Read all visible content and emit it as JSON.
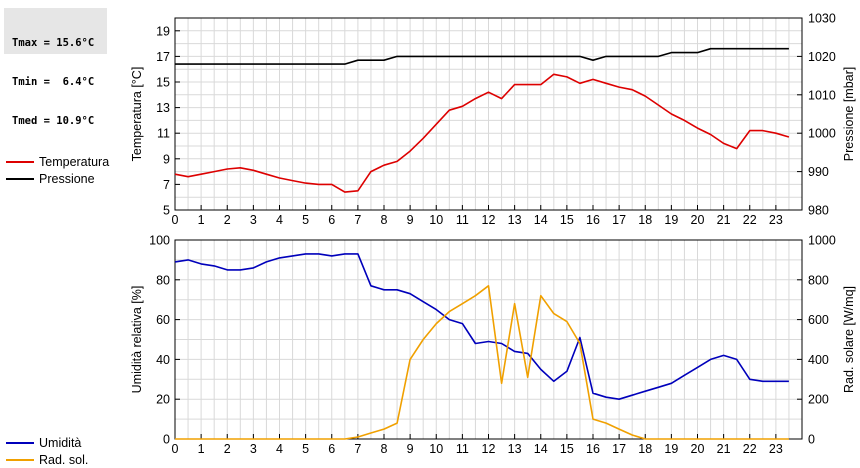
{
  "stats": {
    "lines": [
      "Tmax = 15.6°C",
      "Tmin =  6.4°C",
      "Tmed = 10.9°C"
    ]
  },
  "colors": {
    "temperature": "#dd0000",
    "pressure": "#000000",
    "humidity": "#0000bb",
    "solar": "#f0a000",
    "grid": "#d9d9d9"
  },
  "chart_data": [
    {
      "type": "line",
      "legend_placement": "left",
      "grid": true,
      "x": [
        0,
        0.5,
        1,
        1.5,
        2,
        2.5,
        3,
        3.5,
        4,
        4.5,
        5,
        5.5,
        6,
        6.5,
        7,
        7.5,
        8,
        8.5,
        9,
        9.5,
        10,
        10.5,
        11,
        11.5,
        12,
        12.5,
        13,
        13.5,
        14,
        14.5,
        15,
        15.5,
        16,
        16.5,
        17,
        17.5,
        18,
        18.5,
        19,
        19.5,
        20,
        20.5,
        21,
        21.5,
        22,
        22.5,
        23,
        23.5
      ],
      "xlim": [
        0,
        24
      ],
      "x_ticks": [
        0,
        1,
        2,
        3,
        4,
        5,
        6,
        7,
        8,
        9,
        10,
        11,
        12,
        13,
        14,
        15,
        16,
        17,
        18,
        19,
        20,
        21,
        22,
        23
      ],
      "ylabel": "Temperatura [°C]",
      "ylim": [
        5,
        20
      ],
      "y_ticks": [
        5,
        7,
        9,
        11,
        13,
        15,
        17,
        19
      ],
      "y2label": "Pressione [mbar]",
      "y2lim": [
        980,
        1030
      ],
      "y2_ticks": [
        980,
        990,
        1000,
        1010,
        1020,
        1030
      ],
      "series": [
        {
          "name": "Temperatura",
          "axis": "left",
          "values": [
            7.8,
            7.6,
            7.8,
            8.0,
            8.2,
            8.3,
            8.1,
            7.8,
            7.5,
            7.3,
            7.1,
            7.0,
            7.0,
            6.4,
            6.5,
            8.0,
            8.5,
            8.8,
            9.6,
            10.6,
            11.7,
            12.8,
            13.1,
            13.7,
            14.2,
            13.7,
            14.8,
            14.8,
            14.8,
            15.6,
            15.4,
            14.9,
            15.2,
            14.9,
            14.6,
            14.4,
            13.9,
            13.2,
            12.5,
            12.0,
            11.4,
            10.9,
            10.2,
            9.8,
            11.2,
            11.2,
            11.0,
            10.7
          ]
        },
        {
          "name": "Pressione",
          "axis": "right",
          "values": [
            1018,
            1018,
            1018,
            1018,
            1018,
            1018,
            1018,
            1018,
            1018,
            1018,
            1018,
            1018,
            1018,
            1018,
            1019,
            1019,
            1019,
            1020,
            1020,
            1020,
            1020,
            1020,
            1020,
            1020,
            1020,
            1020,
            1020,
            1020,
            1020,
            1020,
            1020,
            1020,
            1019,
            1020,
            1020,
            1020,
            1020,
            1020,
            1021,
            1021,
            1021,
            1022,
            1022,
            1022,
            1022,
            1022,
            1022,
            1022
          ]
        }
      ]
    },
    {
      "type": "line",
      "legend_placement": "left",
      "grid": true,
      "x": [
        0,
        0.5,
        1,
        1.5,
        2,
        2.5,
        3,
        3.5,
        4,
        4.5,
        5,
        5.5,
        6,
        6.5,
        7,
        7.5,
        8,
        8.5,
        9,
        9.5,
        10,
        10.5,
        11,
        11.5,
        12,
        12.5,
        13,
        13.5,
        14,
        14.5,
        15,
        15.5,
        16,
        16.5,
        17,
        17.5,
        18,
        18.5,
        19,
        19.5,
        20,
        20.5,
        21,
        21.5,
        22,
        22.5,
        23,
        23.5
      ],
      "xlim": [
        0,
        24
      ],
      "x_ticks": [
        0,
        1,
        2,
        3,
        4,
        5,
        6,
        7,
        8,
        9,
        10,
        11,
        12,
        13,
        14,
        15,
        16,
        17,
        18,
        19,
        20,
        21,
        22,
        23
      ],
      "ylabel": "Umidità relativa [%]",
      "ylim": [
        0,
        100
      ],
      "y_ticks": [
        0,
        20,
        40,
        60,
        80,
        100
      ],
      "y2label": "Rad. solare [W/mq]",
      "y2lim": [
        0,
        1000
      ],
      "y2_ticks": [
        0,
        200,
        400,
        600,
        800,
        1000
      ],
      "series": [
        {
          "name": "Umidità",
          "axis": "left",
          "values": [
            89,
            90,
            88,
            87,
            85,
            85,
            86,
            89,
            91,
            92,
            93,
            93,
            92,
            93,
            93,
            77,
            75,
            75,
            73,
            69,
            65,
            60,
            58,
            48,
            49,
            48,
            44,
            43,
            35,
            29,
            34,
            51,
            23,
            21,
            20,
            22,
            24,
            26,
            28,
            32,
            36,
            40,
            42,
            40,
            30,
            29,
            29,
            29
          ]
        },
        {
          "name": "Rad. sol.",
          "axis": "right",
          "values": [
            0,
            0,
            0,
            0,
            0,
            0,
            0,
            0,
            0,
            0,
            0,
            0,
            0,
            0,
            10,
            30,
            50,
            80,
            400,
            500,
            580,
            640,
            680,
            720,
            770,
            280,
            680,
            310,
            720,
            630,
            590,
            480,
            100,
            80,
            50,
            20,
            0,
            0,
            0,
            0,
            0,
            0,
            0,
            0,
            0,
            0,
            0,
            0
          ]
        }
      ]
    }
  ]
}
